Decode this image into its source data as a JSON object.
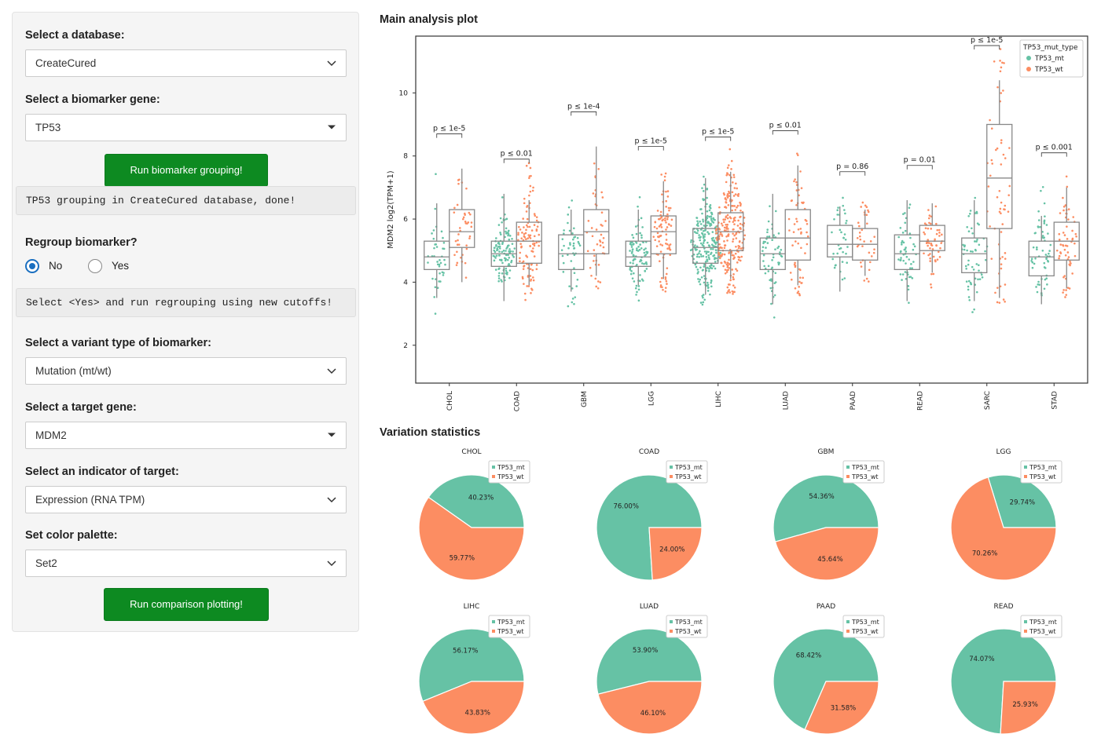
{
  "sidebar": {
    "database": {
      "label": "Select a database:",
      "value": "CreateCured"
    },
    "biomarker": {
      "label": "Select a biomarker gene:",
      "value": "TP53"
    },
    "run_grouping_button": "Run biomarker grouping!",
    "grouping_status": "TP53 grouping in CreateCured database, done!",
    "regroup": {
      "label": "Regroup biomarker?",
      "options": [
        "No",
        "Yes"
      ],
      "selected": "No"
    },
    "regroup_hint": "Select <Yes> and run regrouping using new cutoffs!",
    "variant_type": {
      "label": "Select a variant type of biomarker:",
      "value": "Mutation (mt/wt)"
    },
    "target_gene": {
      "label": "Select a target gene:",
      "value": "MDM2"
    },
    "indicator": {
      "label": "Select an indicator of target:",
      "value": "Expression (RNA TPM)"
    },
    "palette": {
      "label": "Set color palette:",
      "value": "Set2"
    },
    "run_plot_button": "Run comparison plotting!"
  },
  "main": {
    "plot_title": "Main analysis plot",
    "stats_title": "Variation statistics"
  },
  "colors": {
    "mt": "#66c2a5",
    "wt": "#fc8d62",
    "button": "#0d8a21",
    "radio": "#1a6fc0"
  },
  "icons": [
    "chevron-down-icon",
    "caret-down-icon"
  ],
  "chart_data": [
    {
      "type": "box",
      "title": "",
      "xlabel": "",
      "ylabel": "MDM2 log2(TPM+1)",
      "ylim": [
        0.8,
        11.8
      ],
      "yticks": [
        2,
        4,
        6,
        8,
        10
      ],
      "legend": {
        "title": "TP53_mut_type",
        "entries": [
          "TP53_mt",
          "TP53_wt"
        ],
        "placement": "top-right"
      },
      "categories": [
        "CHOL",
        "COAD",
        "GBM",
        "LGG",
        "LIHC",
        "LUAD",
        "PAAD",
        "READ",
        "SARC",
        "STAD"
      ],
      "pvalues": [
        "p ≤ 1e-5",
        "p ≤ 0.01",
        "p ≤ 1e-4",
        "p ≤ 1e-5",
        "p ≤ 1e-5",
        "p ≤ 0.01",
        "p = 0.86",
        "p = 0.01",
        "p ≤ 1e-5",
        "p ≤ 0.001"
      ],
      "series": [
        {
          "name": "TP53_mt",
          "boxes": [
            {
              "q1": 4.4,
              "median": 4.8,
              "q3": 5.3,
              "min": 3.5,
              "max": 6.5
            },
            {
              "q1": 4.5,
              "median": 4.9,
              "q3": 5.3,
              "min": 3.4,
              "max": 6.8
            },
            {
              "q1": 4.4,
              "median": 4.9,
              "q3": 5.5,
              "min": 3.7,
              "max": 6.3
            },
            {
              "q1": 4.5,
              "median": 4.8,
              "q3": 5.3,
              "min": 3.9,
              "max": 6.3
            },
            {
              "q1": 4.6,
              "median": 5.1,
              "q3": 5.7,
              "min": 3.6,
              "max": 7.3
            },
            {
              "q1": 4.4,
              "median": 4.9,
              "q3": 5.4,
              "min": 3.3,
              "max": 6.8
            },
            {
              "q1": 4.8,
              "median": 5.2,
              "q3": 5.8,
              "min": 3.7,
              "max": 6.4
            },
            {
              "q1": 4.4,
              "median": 4.9,
              "q3": 5.5,
              "min": 3.4,
              "max": 6.6
            },
            {
              "q1": 4.3,
              "median": 4.9,
              "q3": 5.4,
              "min": 3.4,
              "max": 6.6
            },
            {
              "q1": 4.2,
              "median": 4.8,
              "q3": 5.3,
              "min": 3.3,
              "max": 6.1
            }
          ]
        },
        {
          "name": "TP53_wt",
          "boxes": [
            {
              "q1": 5.1,
              "median": 5.6,
              "q3": 6.3,
              "min": 4.0,
              "max": 7.6
            },
            {
              "q1": 4.6,
              "median": 5.3,
              "q3": 5.9,
              "min": 3.9,
              "max": 6.6
            },
            {
              "q1": 4.9,
              "median": 5.6,
              "q3": 6.3,
              "min": 4.2,
              "max": 8.3
            },
            {
              "q1": 4.9,
              "median": 5.6,
              "q3": 6.1,
              "min": 4.1,
              "max": 7.2
            },
            {
              "q1": 5.0,
              "median": 5.6,
              "q3": 6.2,
              "min": 4.1,
              "max": 7.5
            },
            {
              "q1": 4.7,
              "median": 5.4,
              "q3": 6.3,
              "min": 3.9,
              "max": 7.7
            },
            {
              "q1": 4.7,
              "median": 5.2,
              "q3": 5.7,
              "min": 4.2,
              "max": 6.3
            },
            {
              "q1": 5.0,
              "median": 5.3,
              "q3": 5.8,
              "min": 4.3,
              "max": 6.5
            },
            {
              "q1": 5.7,
              "median": 7.3,
              "q3": 9.0,
              "min": 3.5,
              "max": 10.4
            },
            {
              "q1": 4.7,
              "median": 5.3,
              "q3": 5.9,
              "min": 3.8,
              "max": 7.0
            }
          ]
        }
      ]
    },
    {
      "type": "pie",
      "legend": {
        "entries": [
          "TP53_mt",
          "TP53_wt"
        ],
        "placement": "top-right"
      },
      "pies": [
        {
          "title": "CHOL",
          "values": [
            40.23,
            59.77
          ],
          "labels": [
            "40.23%",
            "59.77%"
          ]
        },
        {
          "title": "COAD",
          "values": [
            76.0,
            24.0
          ],
          "labels": [
            "76.00%",
            "24.00%"
          ]
        },
        {
          "title": "GBM",
          "values": [
            54.36,
            45.64
          ],
          "labels": [
            "54.36%",
            "45.64%"
          ]
        },
        {
          "title": "LGG",
          "values": [
            29.74,
            70.26
          ],
          "labels": [
            "29.74%",
            "70.26%"
          ]
        },
        {
          "title": "LIHC",
          "values": [
            56.17,
            43.83
          ],
          "labels": [
            "56.17%",
            "43.83%"
          ]
        },
        {
          "title": "LUAD",
          "values": [
            53.9,
            46.1
          ],
          "labels": [
            "53.90%",
            "46.10%"
          ]
        },
        {
          "title": "PAAD",
          "values": [
            68.42,
            31.58
          ],
          "labels": [
            "68.42%",
            "31.58%"
          ]
        },
        {
          "title": "READ",
          "values": [
            74.07,
            25.93
          ],
          "labels": [
            "74.07%",
            "25.93%"
          ]
        }
      ]
    }
  ]
}
